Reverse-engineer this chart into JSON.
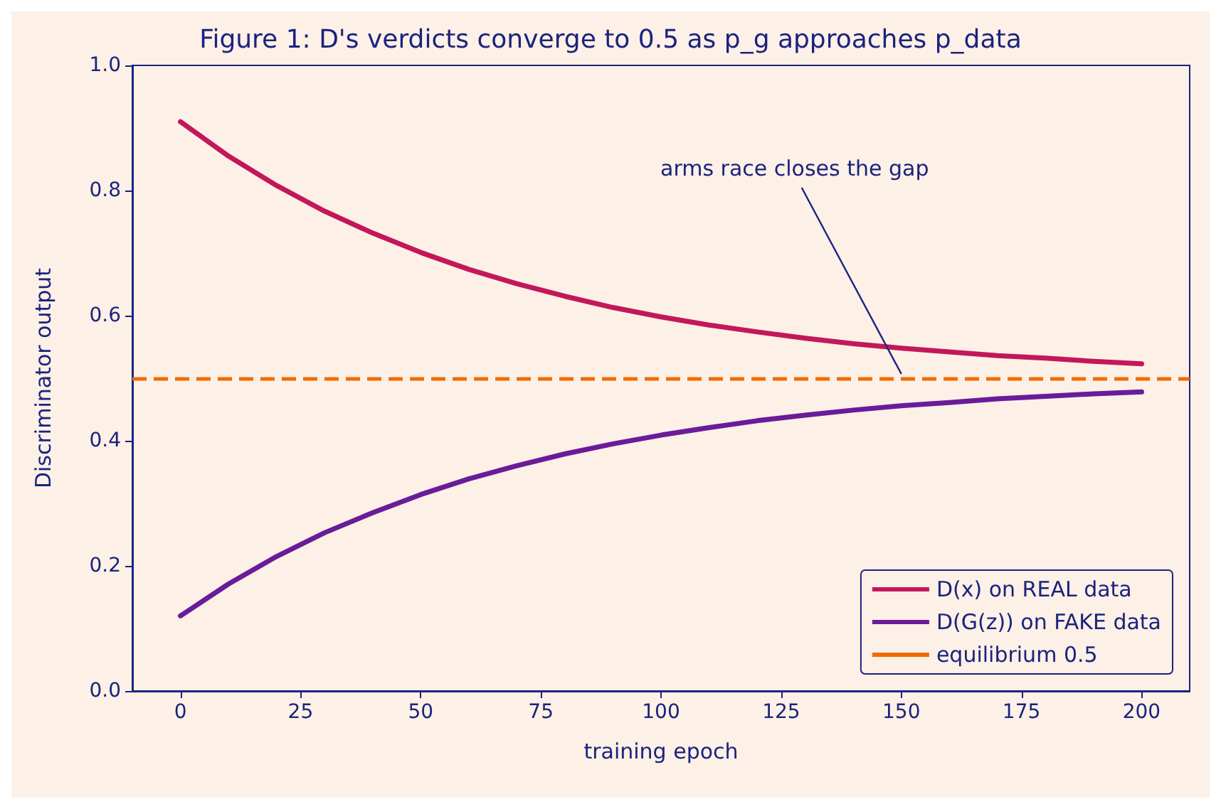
{
  "chart_data": {
    "type": "line",
    "title": "Figure 1: D's verdicts converge to 0.5 as p_g approaches p_data",
    "xlabel": "training epoch",
    "ylabel": "Discriminator output",
    "x": [
      0,
      10,
      20,
      30,
      40,
      50,
      60,
      70,
      80,
      90,
      100,
      110,
      120,
      130,
      140,
      150,
      160,
      170,
      180,
      190,
      200
    ],
    "series": [
      {
        "name": "D(x) on REAL data",
        "color": "#c2185b",
        "values": [
          0.91,
          0.855,
          0.808,
          0.767,
          0.732,
          0.701,
          0.674,
          0.651,
          0.631,
          0.613,
          0.598,
          0.585,
          0.574,
          0.564,
          0.555,
          0.548,
          0.542,
          0.536,
          0.532,
          0.527,
          0.523
        ]
      },
      {
        "name": "D(G(z)) on FAKE data",
        "color": "#6a1b9a",
        "values": [
          0.12,
          0.171,
          0.215,
          0.253,
          0.285,
          0.314,
          0.339,
          0.36,
          0.379,
          0.395,
          0.409,
          0.421,
          0.432,
          0.441,
          0.449,
          0.456,
          0.461,
          0.467,
          0.471,
          0.475,
          0.478
        ]
      }
    ],
    "ref_lines": [
      {
        "axis": "y",
        "value": 0.5,
        "label": "equilibrium 0.5",
        "color": "#ef6c00",
        "line_style": "dashed"
      }
    ],
    "annotations": [
      {
        "text": "arms race closes the gap",
        "x": 150,
        "y": 0.5
      }
    ],
    "xlim": [
      -10,
      210
    ],
    "xticks": [
      0,
      25,
      50,
      75,
      100,
      125,
      150,
      175,
      200
    ],
    "ylim": [
      0,
      1
    ],
    "yticks": [
      {
        "value": 0,
        "label": "0.0"
      },
      0.2,
      0.4,
      0.6,
      0.8,
      {
        "value": 1,
        "label": "1.0"
      }
    ],
    "grid": false,
    "legend": "bottom right",
    "marker": "none",
    "line_style": "solid"
  }
}
